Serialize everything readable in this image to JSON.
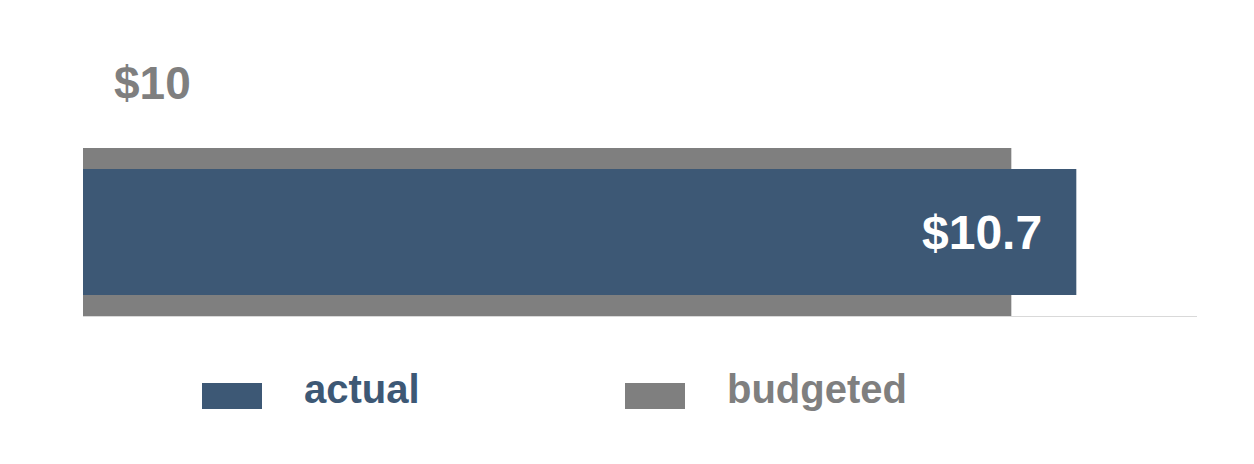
{
  "chart_data": {
    "type": "bar",
    "orientation": "horizontal",
    "categories": [
      null
    ],
    "series": [
      {
        "name": "actual",
        "color": "#3d5875",
        "values": [
          10.7
        ],
        "value_labels": [
          "$10.7"
        ]
      },
      {
        "name": "budgeted",
        "color": "#7f7f7f",
        "values": [
          10
        ],
        "value_labels": [
          "$10"
        ]
      }
    ],
    "xlim": [
      0,
      12
    ],
    "data_labels": true,
    "tick_labels": false,
    "grid": false,
    "legend": "bottom"
  }
}
